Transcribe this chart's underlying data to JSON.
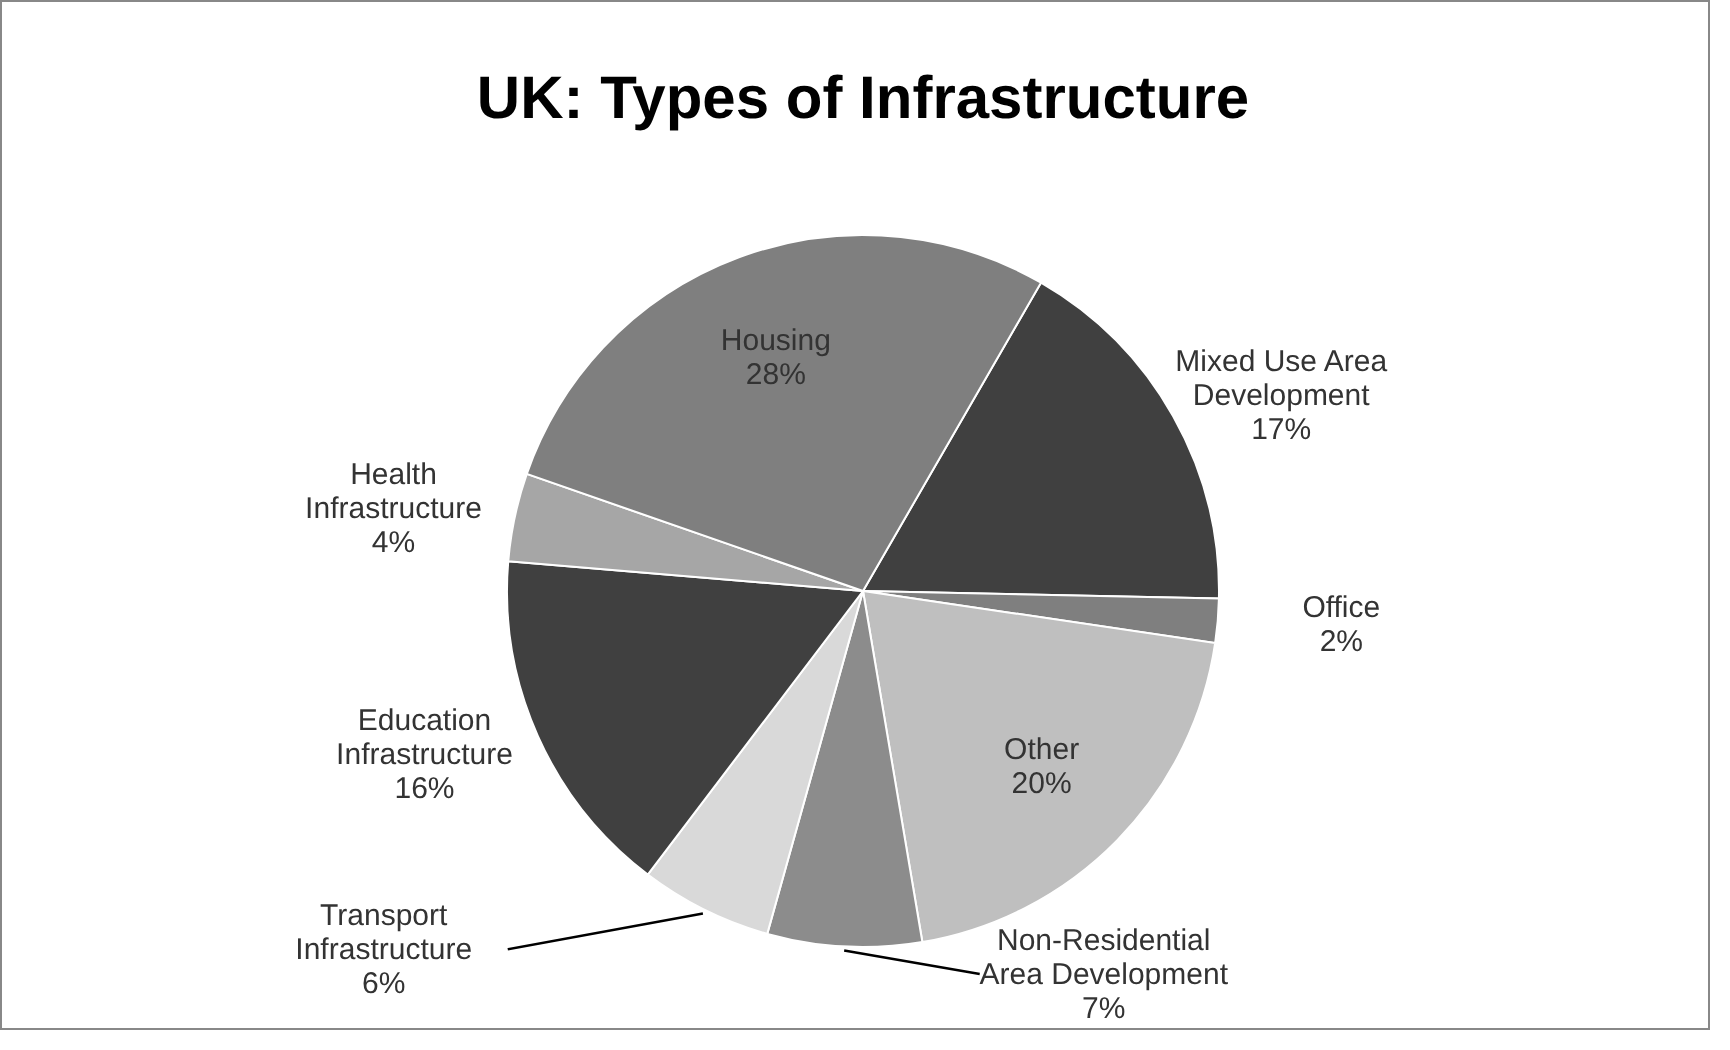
{
  "chart_data": {
    "type": "pie",
    "title": "UK: Types of Infrastructure",
    "categories": [
      "Mixed Use Area Development",
      "Office",
      "Other",
      "Non-Residential Area Development",
      "Transport Infrastructure",
      "Education Infrastructure",
      "Health Infrastructure",
      "Housing"
    ],
    "values": [
      17,
      2,
      20,
      7,
      6,
      16,
      4,
      28
    ],
    "value_labels": [
      "17%",
      "2%",
      "20%",
      "7%",
      "6%",
      "16%",
      "4%",
      "28%"
    ],
    "colors": [
      "#404040",
      "#7f7f7f",
      "#bfbfbf",
      "#8c8c8c",
      "#d9d9d9",
      "#404040",
      "#a6a6a6",
      "#7f7f7f"
    ],
    "legend": false
  }
}
